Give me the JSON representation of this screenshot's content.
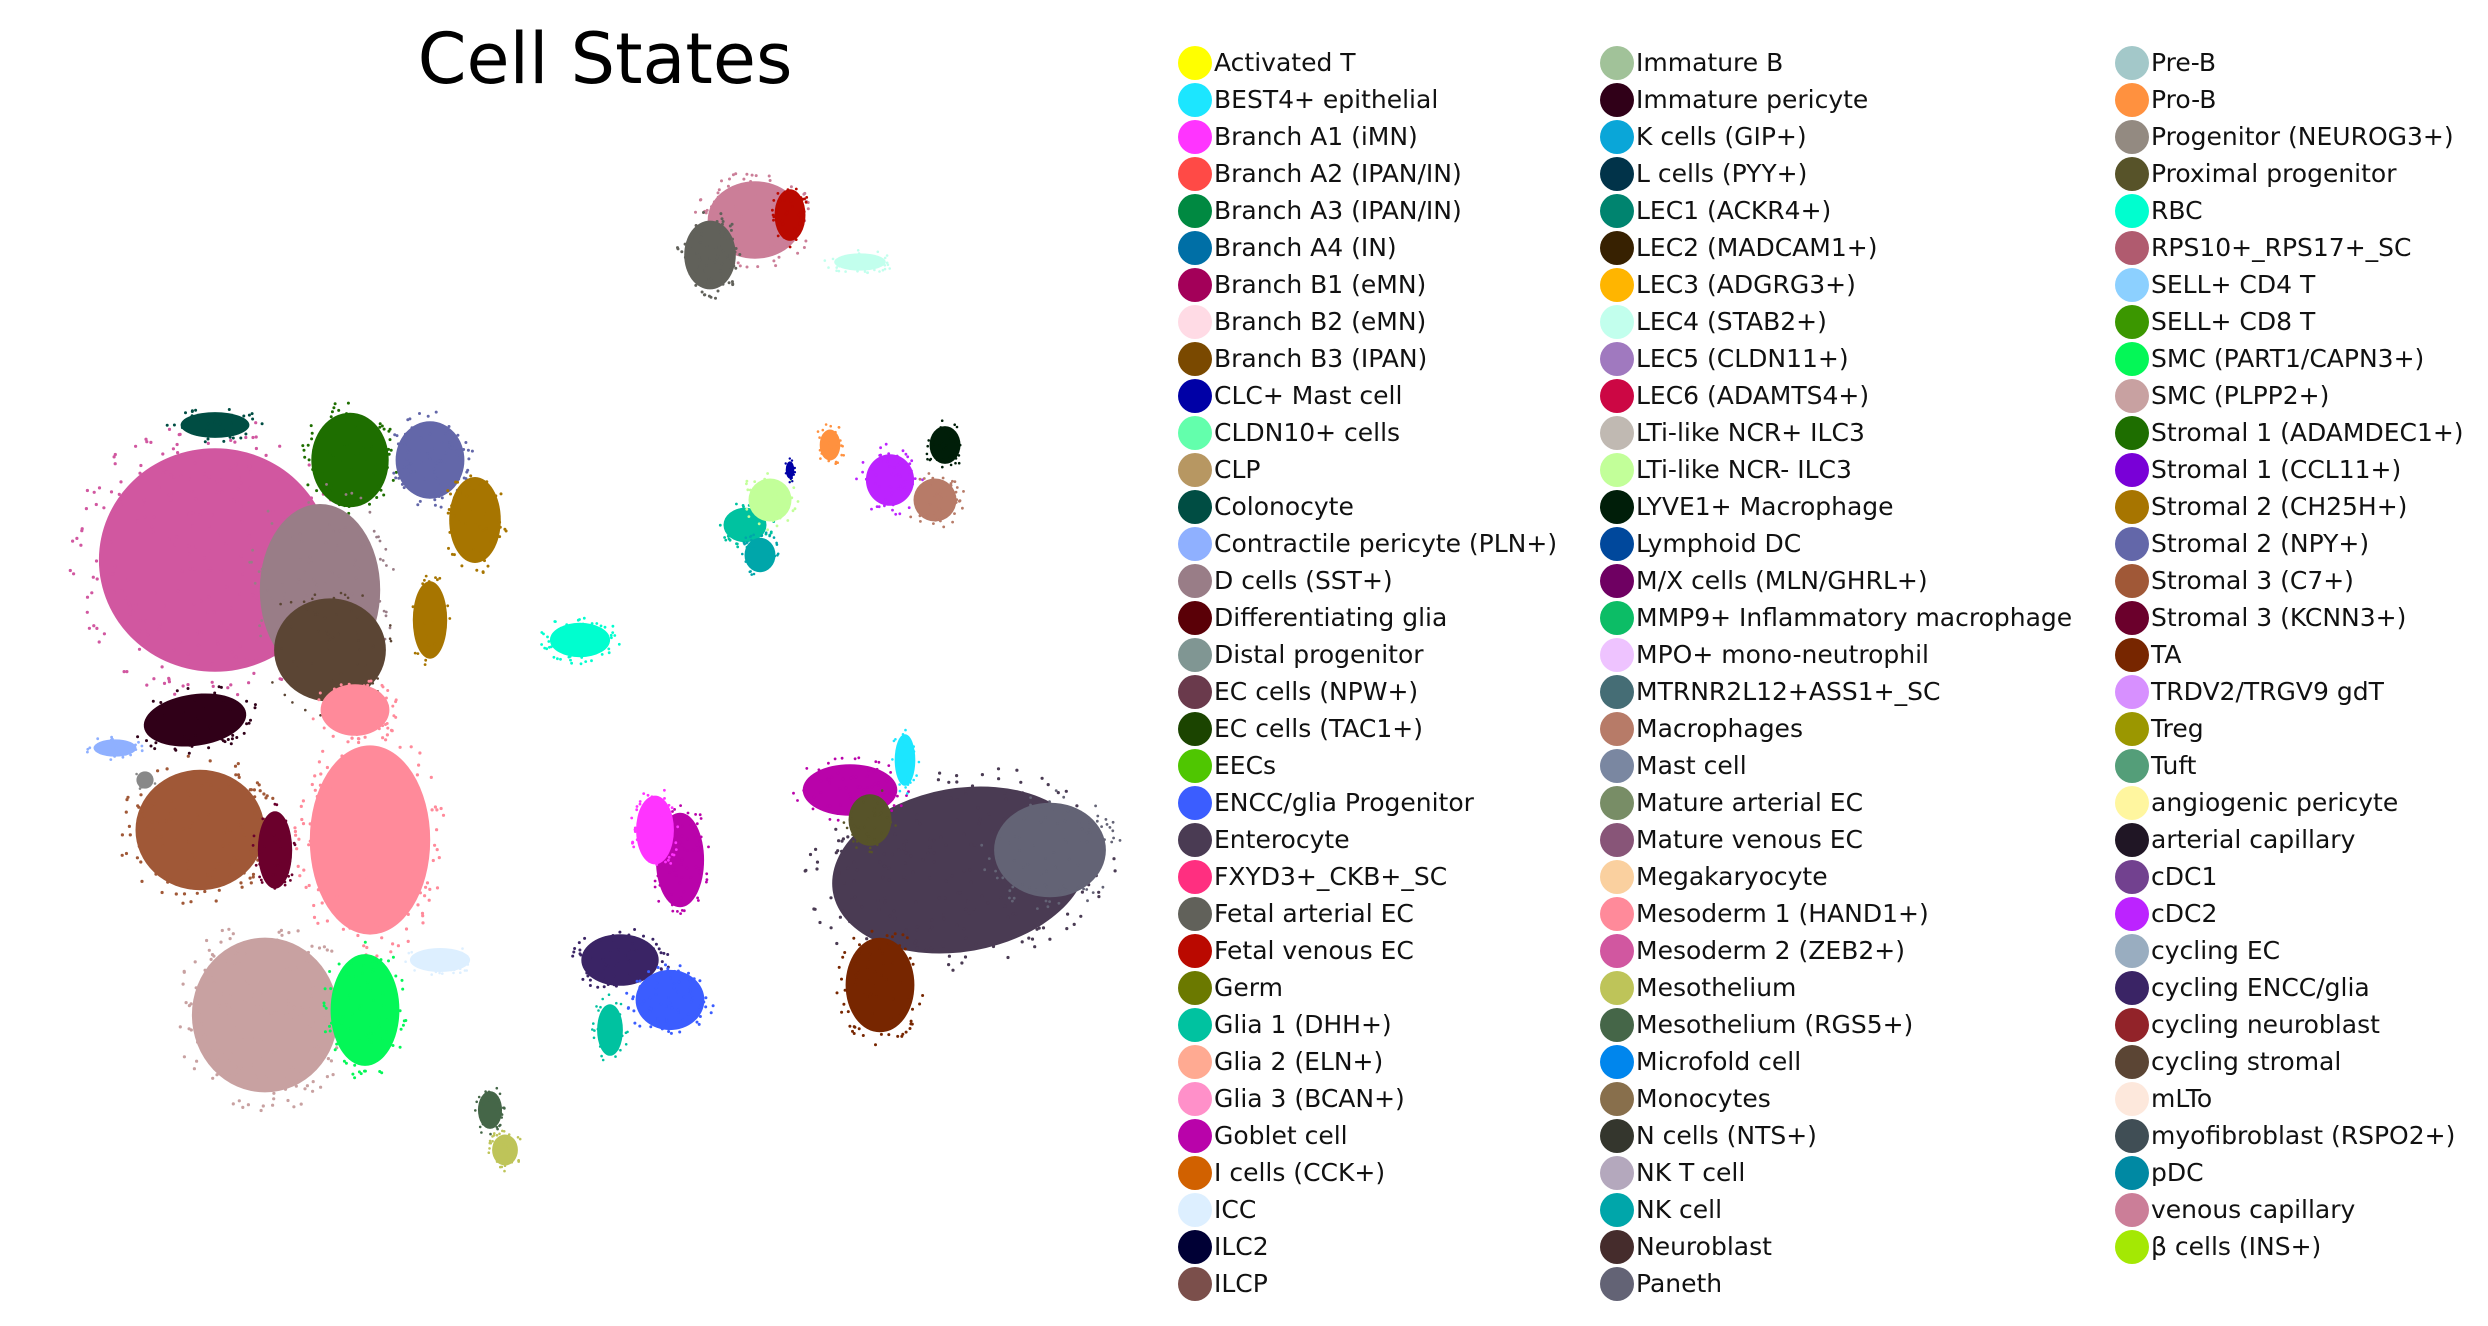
{
  "chart_data": {
    "type": "scatter",
    "title": "Cell States",
    "xlabel": "",
    "ylabel": "",
    "axes_visible": false,
    "grid": false,
    "legend_placement": "right (3 columns)",
    "categories": [
      {
        "label": "Activated T",
        "color": "#ffff00"
      },
      {
        "label": "BEST4+ epithelial",
        "color": "#1ce6ff"
      },
      {
        "label": "Branch A1 (iMN)",
        "color": "#ff34ff"
      },
      {
        "label": "Branch A2 (IPAN/IN)",
        "color": "#ff4a46"
      },
      {
        "label": "Branch A3 (IPAN/IN)",
        "color": "#008941"
      },
      {
        "label": "Branch A4 (IN)",
        "color": "#006fa6"
      },
      {
        "label": "Branch B1 (eMN)",
        "color": "#a30059"
      },
      {
        "label": "Branch B2 (eMN)",
        "color": "#ffdbe5"
      },
      {
        "label": "Branch B3 (IPAN)",
        "color": "#7a4900"
      },
      {
        "label": "CLC+ Mast cell",
        "color": "#0000a6"
      },
      {
        "label": "CLDN10+ cells",
        "color": "#63ffac"
      },
      {
        "label": "CLP",
        "color": "#b79762"
      },
      {
        "label": "Colonocyte",
        "color": "#004d43"
      },
      {
        "label": "Contractile pericyte (PLN+)",
        "color": "#8fb0ff"
      },
      {
        "label": "D cells (SST+)",
        "color": "#997d87"
      },
      {
        "label": "Differentiating glia",
        "color": "#5a0007"
      },
      {
        "label": "Distal progenitor",
        "color": "#809693"
      },
      {
        "label": "EC cells (NPW+)",
        "color": "#6a3a4c"
      },
      {
        "label": "EC cells (TAC1+)",
        "color": "#1b4400"
      },
      {
        "label": "EECs",
        "color": "#4fc601"
      },
      {
        "label": "ENCC/glia Progenitor",
        "color": "#3b5dff"
      },
      {
        "label": "Enterocyte",
        "color": "#4a3b53"
      },
      {
        "label": "FXYD3+_CKB+_SC",
        "color": "#ff2f80"
      },
      {
        "label": "Fetal arterial EC",
        "color": "#61615a"
      },
      {
        "label": "Fetal venous EC",
        "color": "#ba0900"
      },
      {
        "label": "Germ",
        "color": "#6b7900"
      },
      {
        "label": "Glia 1 (DHH+)",
        "color": "#00c2a0"
      },
      {
        "label": "Glia 2 (ELN+)",
        "color": "#ffaa92"
      },
      {
        "label": "Glia 3 (BCAN+)",
        "color": "#ff90c9"
      },
      {
        "label": "Goblet cell",
        "color": "#b903aa"
      },
      {
        "label": "I cells (CCK+)",
        "color": "#d16100"
      },
      {
        "label": "ICC",
        "color": "#ddefff"
      },
      {
        "label": "ILC2",
        "color": "#000035"
      },
      {
        "label": "ILCP",
        "color": "#7b4f4b"
      },
      {
        "label": "Immature B",
        "color": "#a1c299"
      },
      {
        "label": "Immature pericyte",
        "color": "#300018"
      },
      {
        "label": "K cells (GIP+)",
        "color": "#0aa6d8"
      },
      {
        "label": "L cells (PYY+)",
        "color": "#013349"
      },
      {
        "label": "LEC1 (ACKR4+)",
        "color": "#00846f"
      },
      {
        "label": "LEC2 (MADCAM1+)",
        "color": "#372101"
      },
      {
        "label": "LEC3 (ADGRG3+)",
        "color": "#ffb500"
      },
      {
        "label": "LEC4 (STAB2+)",
        "color": "#c2ffed"
      },
      {
        "label": "LEC5 (CLDN11+)",
        "color": "#a079bf"
      },
      {
        "label": "LEC6 (ADAMTS4+)",
        "color": "#cc0744"
      },
      {
        "label": "LTi-like NCR+ ILC3",
        "color": "#c0b9b2"
      },
      {
        "label": "LTi-like NCR- ILC3",
        "color": "#c2ff99"
      },
      {
        "label": "LYVE1+ Macrophage",
        "color": "#001e09"
      },
      {
        "label": "Lymphoid DC",
        "color": "#00489c"
      },
      {
        "label": "M/X cells (MLN/GHRL+)",
        "color": "#6f0062"
      },
      {
        "label": "MMP9+ Inflammatory macrophage",
        "color": "#0cbd66"
      },
      {
        "label": "MPO+ mono-neutrophil",
        "color": "#eec3ff"
      },
      {
        "label": "MTRNR2L12+ASS1+_SC",
        "color": "#456d75"
      },
      {
        "label": "Macrophages",
        "color": "#b77b68"
      },
      {
        "label": "Mast cell",
        "color": "#7a87a1"
      },
      {
        "label": "Mature arterial EC",
        "color": "#788d66"
      },
      {
        "label": "Mature venous EC",
        "color": "#885578"
      },
      {
        "label": "Megakaryocyte",
        "color": "#fad09f"
      },
      {
        "label": "Mesoderm 1 (HAND1+)",
        "color": "#ff8a9a"
      },
      {
        "label": "Mesoderm 2 (ZEB2+)",
        "color": "#d157a0"
      },
      {
        "label": "Mesothelium",
        "color": "#bec459"
      },
      {
        "label": "Mesothelium (RGS5+)",
        "color": "#456648"
      },
      {
        "label": "Microfold cell",
        "color": "#0086ed"
      },
      {
        "label": "Monocytes",
        "color": "#886f4c"
      },
      {
        "label": "N cells (NTS+)",
        "color": "#34362d"
      },
      {
        "label": "NK T cell",
        "color": "#b4a8bd"
      },
      {
        "label": "NK cell",
        "color": "#00a6aa"
      },
      {
        "label": "Neuroblast",
        "color": "#452c2c"
      },
      {
        "label": "Paneth",
        "color": "#636375"
      },
      {
        "label": "Pre-B",
        "color": "#a3c8c9"
      },
      {
        "label": "Pro-B",
        "color": "#ff913f"
      },
      {
        "label": "Progenitor (NEUROG3+)",
        "color": "#938a81"
      },
      {
        "label": "Proximal progenitor",
        "color": "#575329"
      },
      {
        "label": "RBC",
        "color": "#00fecf"
      },
      {
        "label": "RPS10+_RPS17+_SC",
        "color": "#b05b6f"
      },
      {
        "label": "SELL+ CD4 T",
        "color": "#8cd0ff"
      },
      {
        "label": "SELL+ CD8 T",
        "color": "#3b9700"
      },
      {
        "label": "SMC (PART1/CAPN3+)",
        "color": "#04f757"
      },
      {
        "label": "SMC (PLPP2+)",
        "color": "#c8a1a1"
      },
      {
        "label": "Stromal 1 (ADAMDEC1+)",
        "color": "#1e6e00"
      },
      {
        "label": "Stromal 1 (CCL11+)",
        "color": "#7900d7"
      },
      {
        "label": "Stromal 2 (CH25H+)",
        "color": "#a77500"
      },
      {
        "label": "Stromal 2 (NPY+)",
        "color": "#6367a9"
      },
      {
        "label": "Stromal 3 (C7+)",
        "color": "#a05837"
      },
      {
        "label": "Stromal 3 (KCNN3+)",
        "color": "#6b002c"
      },
      {
        "label": "TA",
        "color": "#772600"
      },
      {
        "label": "TRDV2/TRGV9 gdT",
        "color": "#d790ff"
      },
      {
        "label": "Treg",
        "color": "#9b9700"
      },
      {
        "label": "Tuft",
        "color": "#549e79"
      },
      {
        "label": "angiogenic pericyte",
        "color": "#fff69f"
      },
      {
        "label": "arterial capillary",
        "color": "#201625"
      },
      {
        "label": "cDC1",
        "color": "#72418f"
      },
      {
        "label": "cDC2",
        "color": "#bc23ff"
      },
      {
        "label": "cycling EC",
        "color": "#99adc0"
      },
      {
        "label": "cycling ENCC/glia",
        "color": "#3a2465"
      },
      {
        "label": "cycling neuroblast",
        "color": "#922329"
      },
      {
        "label": "cycling stromal",
        "color": "#5b4534"
      },
      {
        "label": "mLTo",
        "color": "#fde8dc"
      },
      {
        "label": "myofibroblast (RSPO2+)",
        "color": "#404e55"
      },
      {
        "label": "pDC",
        "color": "#0089a3"
      },
      {
        "label": "venous capillary",
        "color": "#cb7e98"
      },
      {
        "label": "β cells (INS+)",
        "color": "#a4e804"
      }
    ]
  }
}
